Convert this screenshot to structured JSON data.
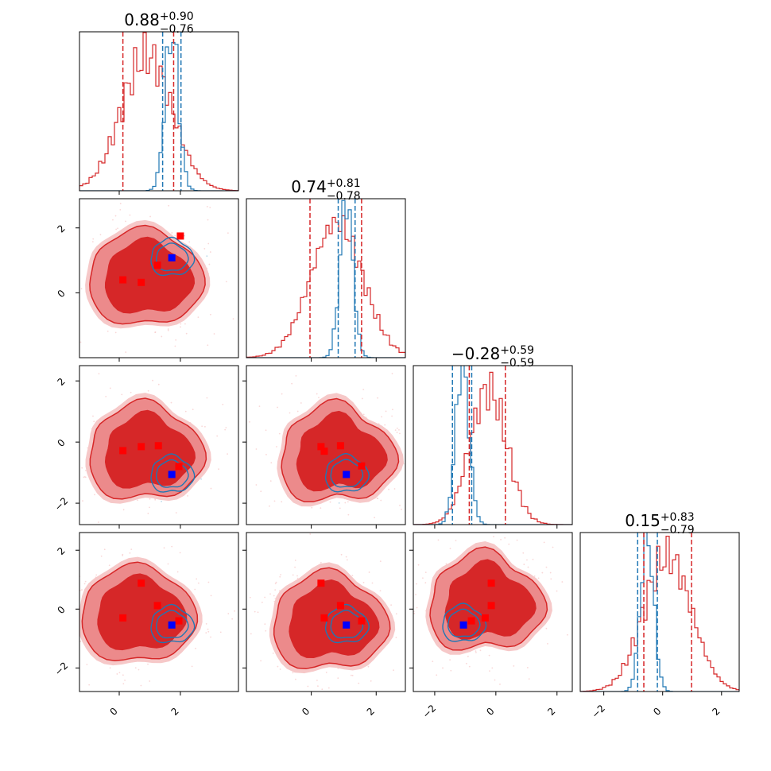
{
  "chart_data": {
    "type": "corner",
    "n_params": 4,
    "grid": false,
    "colors": {
      "red": "#d62728",
      "red_mid": "#ec8a8b",
      "red_light": "#f6c8c8",
      "blue": "#1f77b4",
      "blue_marker": "#0000ff",
      "red_marker": "#ff0000"
    },
    "ranges": [
      [
        -1.3,
        3.9
      ],
      [
        -2.0,
        2.9
      ],
      [
        -2.7,
        2.5
      ],
      [
        -2.8,
        2.6
      ]
    ],
    "titles": [
      {
        "value": "0.88",
        "upper": "+0.90",
        "lower": "−0.76"
      },
      {
        "value": "0.74",
        "upper": "+0.81",
        "lower": "−0.78"
      },
      {
        "value": "−0.28",
        "upper": "+0.59",
        "lower": "−0.59"
      },
      {
        "value": "0.15",
        "upper": "+0.83",
        "lower": "−0.79"
      }
    ],
    "ticks": [
      {
        "values": [
          0,
          2
        ],
        "labels": [
          "0",
          "2"
        ]
      },
      {
        "values": [
          0,
          2
        ],
        "labels": [
          "0",
          "2"
        ]
      },
      {
        "values": [
          -2,
          0,
          2
        ],
        "labels": [
          "−2",
          "0",
          "2"
        ]
      },
      {
        "values": [
          -2,
          0,
          2
        ],
        "labels": [
          "−2",
          "0",
          "2"
        ]
      }
    ],
    "quantiles": {
      "red": [
        [
          0.12,
          1.78
        ],
        [
          -0.04,
          1.55
        ],
        [
          -0.87,
          0.31
        ],
        [
          -0.64,
          0.98
        ]
      ],
      "blue": [
        [
          1.42,
          2.02
        ],
        [
          0.83,
          1.35
        ],
        [
          -1.42,
          -0.79
        ],
        [
          -0.85,
          -0.18
        ]
      ]
    },
    "histograms": {
      "red": [
        {
          "mean": 0.9,
          "sd": 0.83
        },
        {
          "mean": 0.78,
          "sd": 0.8
        },
        {
          "mean": -0.25,
          "sd": 0.6
        },
        {
          "mean": 0.17,
          "sd": 0.81
        }
      ],
      "blue": [
        {
          "mean": 1.72,
          "sd": 0.22
        },
        {
          "mean": 1.08,
          "sd": 0.2
        },
        {
          "mean": -1.1,
          "sd": 0.22
        },
        {
          "mean": -0.53,
          "sd": 0.22
        }
      ]
    },
    "contours": {
      "red_centers": [
        [
          0.85,
          0.45
        ],
        [
          0.85,
          -0.35
        ],
        [
          0.78,
          -0.42
        ],
        [
          0.6,
          -0.2
        ],
        [
          0.55,
          -0.45
        ],
        [
          -0.35,
          0.2
        ]
      ],
      "blue_centers": [
        [
          1.72,
          1.08
        ],
        [
          1.72,
          -1.06
        ],
        [
          1.08,
          -1.05
        ],
        [
          1.72,
          -0.54
        ],
        [
          1.08,
          -0.54
        ],
        [
          -1.06,
          -0.5
        ]
      ]
    },
    "markers": {
      "blue": [
        {
          "x": 1.72,
          "y": 1.08
        },
        {
          "x": 1.72,
          "y": -1.06
        },
        {
          "x": 1.08,
          "y": -1.06
        },
        {
          "x": 1.72,
          "y": -0.54
        },
        {
          "x": 1.08,
          "y": -0.54
        },
        {
          "x": -1.06,
          "y": -0.54
        }
      ],
      "red": [
        [
          {
            "x": 2.0,
            "y": 1.75
          },
          {
            "x": 1.25,
            "y": 0.85
          },
          {
            "x": 0.12,
            "y": 0.4
          },
          {
            "x": 0.72,
            "y": 0.32
          }
        ],
        [
          {
            "x": 1.28,
            "y": -0.12
          },
          {
            "x": 0.72,
            "y": -0.15
          },
          {
            "x": 0.12,
            "y": -0.28
          },
          {
            "x": 1.95,
            "y": -0.8
          }
        ],
        [
          {
            "x": 0.9,
            "y": -0.12
          },
          {
            "x": 0.3,
            "y": -0.15
          },
          {
            "x": 0.4,
            "y": -0.3
          },
          {
            "x": 1.55,
            "y": -0.78
          }
        ],
        [
          {
            "x": 0.72,
            "y": 0.88
          },
          {
            "x": 1.25,
            "y": 0.12
          },
          {
            "x": 0.12,
            "y": -0.3
          },
          {
            "x": 1.95,
            "y": -0.4
          }
        ],
        [
          {
            "x": 0.3,
            "y": 0.88
          },
          {
            "x": 0.9,
            "y": 0.12
          },
          {
            "x": 0.4,
            "y": -0.3
          },
          {
            "x": 1.55,
            "y": -0.4
          }
        ],
        [
          {
            "x": -0.15,
            "y": 0.88
          },
          {
            "x": -0.15,
            "y": 0.12
          },
          {
            "x": -0.35,
            "y": -0.3
          },
          {
            "x": -0.8,
            "y": -0.4
          }
        ]
      ]
    }
  }
}
